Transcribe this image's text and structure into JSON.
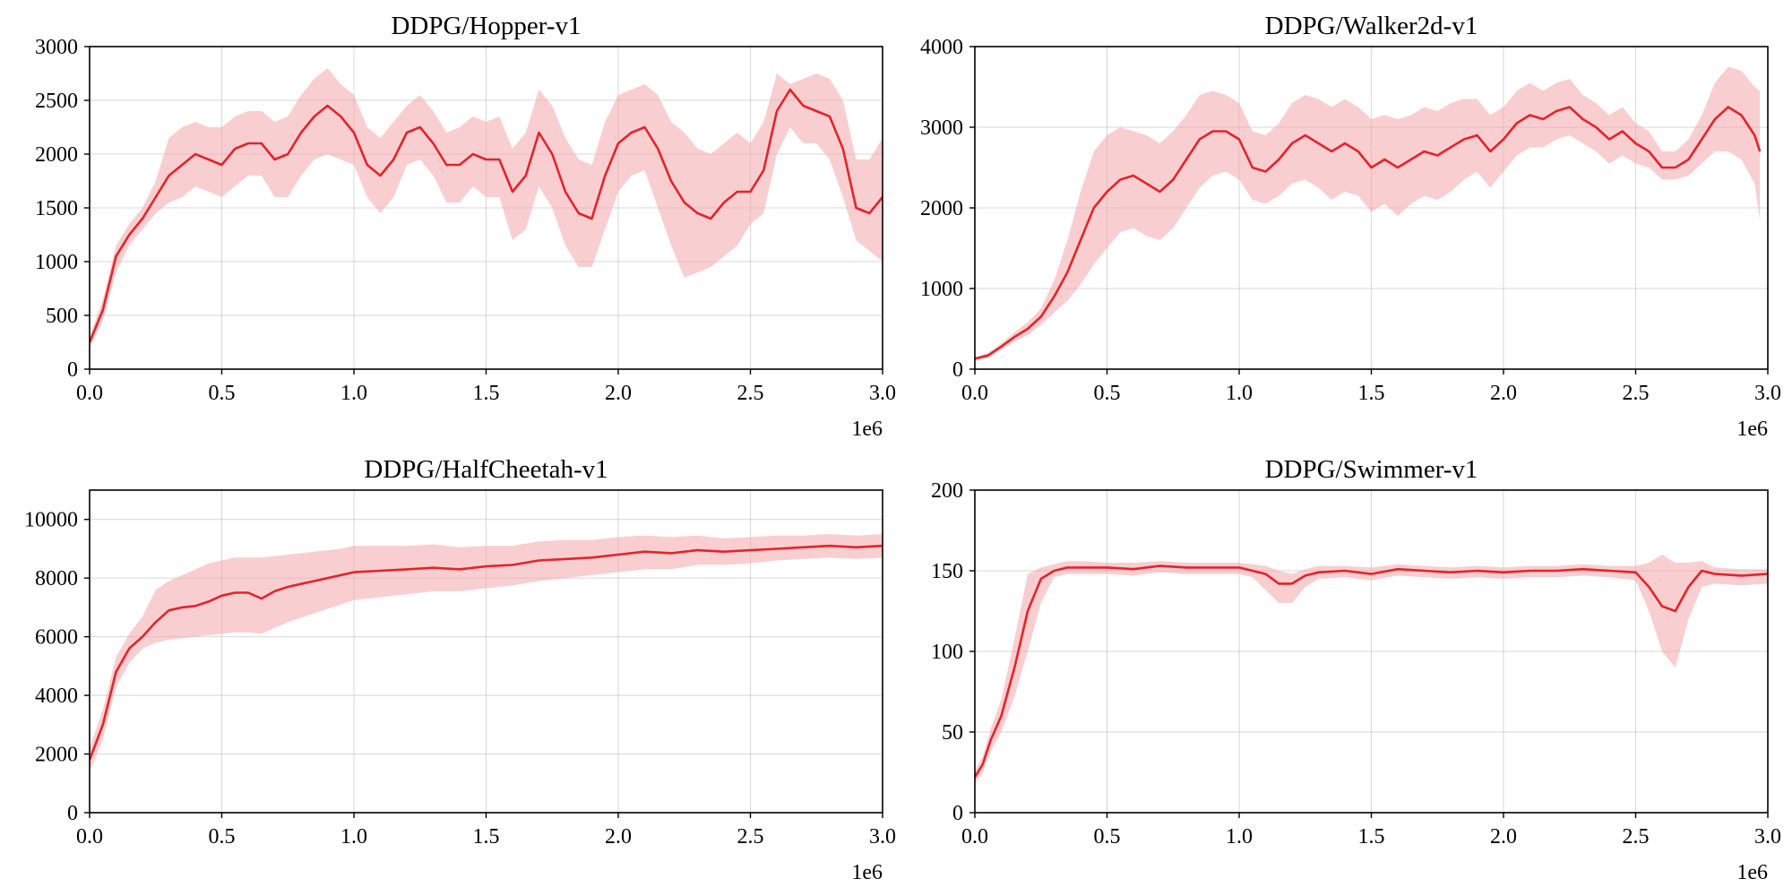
{
  "colors": {
    "line": "#e3242b",
    "band": "#f4a6a9"
  },
  "chart_data": [
    {
      "type": "line",
      "title": "DDPG/Hopper-v1",
      "x_scale_label": "1e6",
      "xlim": [
        0,
        3.0
      ],
      "ylim": [
        0,
        3000
      ],
      "xticks": [
        0.0,
        0.5,
        1.0,
        1.5,
        2.0,
        2.5,
        3.0
      ],
      "xtick_labels": [
        "0.0",
        "0.5",
        "1.0",
        "1.5",
        "2.0",
        "2.5",
        "3.0"
      ],
      "yticks": [
        0,
        500,
        1000,
        1500,
        2000,
        2500,
        3000
      ],
      "ytick_labels": [
        "0",
        "500",
        "1000",
        "1500",
        "2000",
        "2500",
        "3000"
      ],
      "grid": true,
      "series": [
        {
          "x": [
            0.0,
            0.05,
            0.1,
            0.15,
            0.2,
            0.25,
            0.3,
            0.35,
            0.4,
            0.45,
            0.5,
            0.55,
            0.6,
            0.65,
            0.7,
            0.75,
            0.8,
            0.85,
            0.9,
            0.95,
            1.0,
            1.05,
            1.1,
            1.15,
            1.2,
            1.25,
            1.3,
            1.35,
            1.4,
            1.45,
            1.5,
            1.55,
            1.6,
            1.65,
            1.7,
            1.75,
            1.8,
            1.85,
            1.9,
            1.95,
            2.0,
            2.05,
            2.1,
            2.15,
            2.2,
            2.25,
            2.3,
            2.35,
            2.4,
            2.45,
            2.5,
            2.55,
            2.6,
            2.65,
            2.7,
            2.75,
            2.8,
            2.85,
            2.9,
            2.95,
            3.0
          ],
          "y": [
            250,
            550,
            1050,
            1250,
            1400,
            1600,
            1800,
            1900,
            2000,
            1950,
            1900,
            2050,
            2100,
            2100,
            1950,
            2000,
            2200,
            2350,
            2450,
            2350,
            2200,
            1900,
            1800,
            1950,
            2200,
            2250,
            2100,
            1900,
            1900,
            2000,
            1950,
            1950,
            1650,
            1800,
            2200,
            2000,
            1650,
            1450,
            1400,
            1800,
            2100,
            2200,
            2250,
            2050,
            1750,
            1550,
            1450,
            1400,
            1550,
            1650,
            1650,
            1850,
            2400,
            2600,
            2450,
            2400,
            2350,
            2050,
            1500,
            1450,
            1600
          ],
          "lower": [
            200,
            450,
            900,
            1150,
            1300,
            1450,
            1550,
            1600,
            1700,
            1650,
            1600,
            1700,
            1800,
            1800,
            1600,
            1600,
            1800,
            1950,
            2000,
            1950,
            1900,
            1600,
            1450,
            1600,
            1900,
            1950,
            1800,
            1550,
            1550,
            1700,
            1600,
            1600,
            1200,
            1300,
            1700,
            1500,
            1150,
            950,
            950,
            1300,
            1650,
            1800,
            1850,
            1500,
            1150,
            850,
            900,
            950,
            1050,
            1150,
            1350,
            1450,
            2000,
            2250,
            2100,
            2100,
            1950,
            1600,
            1200,
            1100,
            1000
          ],
          "upper": [
            300,
            650,
            1150,
            1350,
            1500,
            1750,
            2150,
            2250,
            2300,
            2250,
            2250,
            2350,
            2400,
            2400,
            2300,
            2350,
            2550,
            2700,
            2800,
            2650,
            2550,
            2250,
            2150,
            2300,
            2450,
            2550,
            2400,
            2200,
            2250,
            2350,
            2300,
            2350,
            2050,
            2200,
            2600,
            2450,
            2150,
            1950,
            1900,
            2300,
            2550,
            2600,
            2650,
            2550,
            2300,
            2200,
            2050,
            2000,
            2100,
            2200,
            2100,
            2300,
            2750,
            2650,
            2700,
            2750,
            2700,
            2500,
            1950,
            1950,
            2150
          ]
        }
      ]
    },
    {
      "type": "line",
      "title": "DDPG/Walker2d-v1",
      "x_scale_label": "1e6",
      "xlim": [
        0,
        3.0
      ],
      "ylim": [
        0,
        4000
      ],
      "xticks": [
        0.0,
        0.5,
        1.0,
        1.5,
        2.0,
        2.5,
        3.0
      ],
      "xtick_labels": [
        "0.0",
        "0.5",
        "1.0",
        "1.5",
        "2.0",
        "2.5",
        "3.0"
      ],
      "yticks": [
        0,
        1000,
        2000,
        3000,
        4000
      ],
      "ytick_labels": [
        "0",
        "1000",
        "2000",
        "3000",
        "4000"
      ],
      "grid": true,
      "series": [
        {
          "x": [
            0.0,
            0.05,
            0.1,
            0.15,
            0.2,
            0.25,
            0.3,
            0.35,
            0.4,
            0.45,
            0.5,
            0.55,
            0.6,
            0.65,
            0.7,
            0.75,
            0.8,
            0.85,
            0.9,
            0.95,
            1.0,
            1.05,
            1.1,
            1.15,
            1.2,
            1.25,
            1.3,
            1.35,
            1.4,
            1.45,
            1.5,
            1.55,
            1.6,
            1.65,
            1.7,
            1.75,
            1.8,
            1.85,
            1.9,
            1.95,
            2.0,
            2.05,
            2.1,
            2.15,
            2.2,
            2.25,
            2.3,
            2.35,
            2.4,
            2.45,
            2.5,
            2.55,
            2.6,
            2.65,
            2.7,
            2.75,
            2.8,
            2.85,
            2.9,
            2.95,
            2.97
          ],
          "y": [
            130,
            170,
            280,
            400,
            500,
            650,
            900,
            1200,
            1600,
            2000,
            2200,
            2350,
            2400,
            2300,
            2200,
            2350,
            2600,
            2850,
            2950,
            2950,
            2850,
            2500,
            2450,
            2600,
            2800,
            2900,
            2800,
            2700,
            2800,
            2700,
            2500,
            2600,
            2500,
            2600,
            2700,
            2650,
            2750,
            2850,
            2900,
            2700,
            2850,
            3050,
            3150,
            3100,
            3200,
            3250,
            3100,
            3000,
            2850,
            2950,
            2800,
            2700,
            2500,
            2500,
            2600,
            2850,
            3100,
            3250,
            3150,
            2900,
            2700
          ],
          "lower": [
            110,
            140,
            240,
            340,
            420,
            550,
            700,
            850,
            1050,
            1300,
            1500,
            1700,
            1750,
            1650,
            1600,
            1750,
            2000,
            2250,
            2400,
            2450,
            2350,
            2100,
            2050,
            2150,
            2300,
            2350,
            2250,
            2100,
            2200,
            2150,
            1950,
            2050,
            1900,
            2050,
            2150,
            2100,
            2200,
            2350,
            2450,
            2250,
            2450,
            2650,
            2750,
            2750,
            2850,
            2900,
            2800,
            2700,
            2550,
            2650,
            2550,
            2500,
            2350,
            2350,
            2400,
            2550,
            2700,
            2700,
            2600,
            2300,
            1850
          ],
          "upper": [
            150,
            200,
            320,
            460,
            580,
            750,
            1100,
            1600,
            2200,
            2700,
            2900,
            3000,
            2950,
            2900,
            2800,
            2950,
            3150,
            3400,
            3450,
            3400,
            3300,
            2950,
            2900,
            3050,
            3300,
            3400,
            3350,
            3250,
            3350,
            3250,
            3100,
            3150,
            3100,
            3150,
            3250,
            3200,
            3300,
            3350,
            3350,
            3150,
            3250,
            3450,
            3550,
            3450,
            3550,
            3600,
            3400,
            3300,
            3150,
            3250,
            3050,
            2950,
            2700,
            2700,
            2850,
            3150,
            3550,
            3750,
            3700,
            3500,
            3450
          ]
        }
      ]
    },
    {
      "type": "line",
      "title": "DDPG/HalfCheetah-v1",
      "x_scale_label": "1e6",
      "xlim": [
        0,
        3.0
      ],
      "ylim": [
        0,
        11000
      ],
      "xticks": [
        0.0,
        0.5,
        1.0,
        1.5,
        2.0,
        2.5,
        3.0
      ],
      "xtick_labels": [
        "0.0",
        "0.5",
        "1.0",
        "1.5",
        "2.0",
        "2.5",
        "3.0"
      ],
      "yticks": [
        0,
        2000,
        4000,
        6000,
        8000,
        10000
      ],
      "ytick_labels": [
        "0",
        "2000",
        "4000",
        "6000",
        "8000",
        "10000"
      ],
      "grid": true,
      "series": [
        {
          "x": [
            0.0,
            0.05,
            0.1,
            0.15,
            0.2,
            0.25,
            0.3,
            0.35,
            0.4,
            0.45,
            0.5,
            0.55,
            0.6,
            0.65,
            0.7,
            0.75,
            0.8,
            0.85,
            0.9,
            0.95,
            1.0,
            1.1,
            1.2,
            1.3,
            1.4,
            1.5,
            1.6,
            1.7,
            1.8,
            1.9,
            2.0,
            2.1,
            2.2,
            2.3,
            2.4,
            2.5,
            2.6,
            2.7,
            2.8,
            2.9,
            3.0
          ],
          "y": [
            1800,
            3000,
            4800,
            5600,
            6000,
            6500,
            6900,
            7000,
            7050,
            7200,
            7400,
            7500,
            7500,
            7300,
            7550,
            7700,
            7800,
            7900,
            8000,
            8100,
            8200,
            8250,
            8300,
            8350,
            8300,
            8400,
            8450,
            8600,
            8650,
            8700,
            8800,
            8900,
            8850,
            8950,
            8900,
            8950,
            9000,
            9050,
            9100,
            9050,
            9100
          ],
          "lower": [
            1400,
            2500,
            4300,
            5100,
            5600,
            5800,
            5900,
            5950,
            6000,
            6050,
            6100,
            6150,
            6150,
            6100,
            6300,
            6500,
            6650,
            6800,
            6950,
            7100,
            7250,
            7350,
            7450,
            7550,
            7550,
            7650,
            7750,
            7900,
            8000,
            8100,
            8200,
            8300,
            8300,
            8450,
            8450,
            8500,
            8600,
            8650,
            8700,
            8650,
            8700
          ],
          "upper": [
            2200,
            3500,
            5300,
            6100,
            6700,
            7600,
            7900,
            8100,
            8300,
            8500,
            8600,
            8700,
            8700,
            8700,
            8750,
            8800,
            8850,
            8900,
            8950,
            9000,
            9100,
            9100,
            9100,
            9150,
            9050,
            9100,
            9100,
            9250,
            9300,
            9300,
            9400,
            9450,
            9400,
            9450,
            9350,
            9400,
            9450,
            9450,
            9500,
            9450,
            9500
          ]
        }
      ]
    },
    {
      "type": "line",
      "title": "DDPG/Swimmer-v1",
      "x_scale_label": "1e6",
      "xlim": [
        0,
        3.0
      ],
      "ylim": [
        0,
        200
      ],
      "xticks": [
        0.0,
        0.5,
        1.0,
        1.5,
        2.0,
        2.5,
        3.0
      ],
      "xtick_labels": [
        "0.0",
        "0.5",
        "1.0",
        "1.5",
        "2.0",
        "2.5",
        "3.0"
      ],
      "yticks": [
        0,
        50,
        100,
        150,
        200
      ],
      "ytick_labels": [
        "0",
        "50",
        "100",
        "150",
        "200"
      ],
      "grid": true,
      "series": [
        {
          "x": [
            0.0,
            0.03,
            0.06,
            0.1,
            0.15,
            0.2,
            0.25,
            0.3,
            0.35,
            0.4,
            0.5,
            0.6,
            0.7,
            0.8,
            0.9,
            1.0,
            1.05,
            1.1,
            1.15,
            1.2,
            1.25,
            1.3,
            1.4,
            1.5,
            1.6,
            1.7,
            1.8,
            1.9,
            2.0,
            2.1,
            2.2,
            2.3,
            2.4,
            2.5,
            2.55,
            2.6,
            2.65,
            2.7,
            2.75,
            2.8,
            2.9,
            3.0
          ],
          "y": [
            22,
            30,
            45,
            60,
            90,
            125,
            145,
            150,
            152,
            152,
            152,
            151,
            153,
            152,
            152,
            152,
            150,
            148,
            142,
            142,
            147,
            149,
            150,
            148,
            151,
            150,
            149,
            150,
            149,
            150,
            150,
            151,
            150,
            149,
            140,
            128,
            125,
            140,
            150,
            148,
            147,
            148
          ],
          "lower": [
            18,
            25,
            38,
            50,
            72,
            100,
            130,
            146,
            148,
            148,
            148,
            147,
            149,
            148,
            148,
            148,
            146,
            138,
            130,
            130,
            140,
            145,
            146,
            144,
            147,
            146,
            145,
            146,
            145,
            146,
            146,
            147,
            146,
            144,
            125,
            100,
            90,
            120,
            140,
            142,
            141,
            142
          ],
          "upper": [
            26,
            35,
            52,
            70,
            108,
            148,
            152,
            154,
            156,
            156,
            155,
            155,
            156,
            155,
            155,
            155,
            154,
            153,
            150,
            148,
            151,
            153,
            153,
            152,
            154,
            153,
            152,
            153,
            152,
            153,
            153,
            154,
            153,
            153,
            155,
            160,
            155,
            155,
            156,
            152,
            151,
            151
          ]
        }
      ]
    }
  ]
}
